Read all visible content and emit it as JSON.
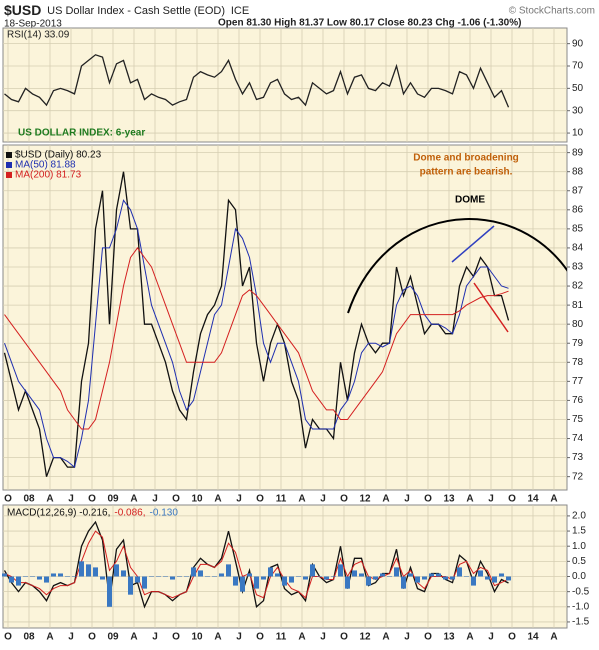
{
  "header": {
    "symbol": "$USD",
    "name": "US Dollar Index - Cash Settle (EOD)",
    "exchange": "ICE",
    "date": "18-Sep-2013",
    "quote": "Open 81.30 High 81.37 Low 80.17 Close 80.23 Chg -1.06 (-1.30%)",
    "source": "© StockCharts.com"
  },
  "chart_data": [
    {
      "type": "line",
      "title": "RSI(14) 33.09",
      "grid": true,
      "ylim": [
        2,
        104
      ],
      "yticks": [
        10,
        30,
        50,
        70,
        90
      ],
      "series": [
        {
          "name": "RSI(14)",
          "color": "#222222",
          "values": [
            45,
            40,
            38,
            50,
            45,
            42,
            35,
            48,
            50,
            48,
            45,
            70,
            75,
            80,
            78,
            55,
            72,
            75,
            55,
            58,
            40,
            45,
            42,
            40,
            35,
            38,
            40,
            60,
            65,
            62,
            60,
            65,
            75,
            58,
            45,
            55,
            40,
            42,
            55,
            58,
            45,
            40,
            42,
            35,
            55,
            50,
            45,
            48,
            65,
            45,
            60,
            62,
            50,
            48,
            55,
            52,
            70,
            45,
            55,
            45,
            42,
            50,
            50,
            48,
            45,
            65,
            62,
            50,
            68,
            55,
            42,
            48,
            33.09,
            null,
            null,
            null,
            null,
            null,
            null,
            null,
            null,
            null
          ]
        }
      ]
    },
    {
      "type": "line",
      "grid": true,
      "annotations": [
        "US DOLLAR INDEX: 6-year",
        "Dome and broadening",
        "pattern  are  bearish.",
        "DOME"
      ],
      "categories": [
        null,
        "O",
        null,
        null,
        "08",
        null,
        null,
        "A",
        null,
        null,
        "J",
        null,
        null,
        "O",
        null,
        null,
        "09",
        null,
        null,
        "A",
        null,
        null,
        "J",
        null,
        null,
        "O",
        null,
        null,
        "10",
        null,
        null,
        "A",
        null,
        null,
        "J",
        null,
        null,
        "O",
        null,
        null,
        "11",
        null,
        null,
        "A",
        null,
        null,
        "J",
        null,
        null,
        "O",
        null,
        null,
        "12",
        null,
        null,
        "A",
        null,
        null,
        "J",
        null,
        null,
        "O",
        null,
        null,
        "13",
        null,
        null,
        "A",
        null,
        null,
        "J",
        null,
        null,
        "O",
        null,
        null,
        "14",
        null,
        null,
        "A",
        null,
        null
      ],
      "ylim": [
        71.3,
        89.4
      ],
      "yticks": [
        72,
        73,
        74,
        75,
        76,
        77,
        78,
        79,
        80,
        81,
        82,
        83,
        84,
        85,
        86,
        87,
        88,
        89
      ],
      "series": [
        {
          "name": "$USD (Daily) 80.23",
          "color": "#111111",
          "values": [
            78.5,
            77,
            75.5,
            76.5,
            75.5,
            74.5,
            72,
            73,
            73,
            72.5,
            72.5,
            77,
            79,
            85,
            87,
            80,
            86,
            88,
            85,
            85,
            80,
            80,
            79,
            78,
            76.5,
            75.5,
            75,
            77.5,
            79.5,
            80.5,
            81,
            82,
            86.5,
            86,
            82,
            83,
            79,
            77,
            79,
            80,
            79,
            77,
            76,
            73.5,
            75,
            74.5,
            74.5,
            74,
            78,
            76,
            78.5,
            80,
            79,
            78.5,
            79,
            79,
            83,
            81.5,
            82.5,
            81,
            79.5,
            80,
            80,
            79.5,
            79.5,
            82,
            83,
            82.5,
            83.5,
            83,
            81.5,
            81.5,
            80.2,
            null,
            null,
            null,
            null,
            null,
            null,
            null,
            null,
            null
          ]
        },
        {
          "name": "MA(50) 81.88",
          "color": "#1f2fb0",
          "values": [
            79,
            78,
            77,
            76.5,
            76,
            75.5,
            74,
            73,
            73,
            72.8,
            72.5,
            74,
            76,
            80,
            84,
            84,
            85,
            86.5,
            86,
            85,
            83,
            81,
            80,
            79,
            78,
            76.5,
            75.5,
            76,
            77.5,
            79,
            80.5,
            81,
            83,
            85,
            84.5,
            83.5,
            81.5,
            79,
            78,
            79,
            79,
            78,
            77,
            75,
            74.5,
            74.5,
            74.5,
            74.5,
            75.5,
            76,
            77,
            78.5,
            79,
            79,
            78.8,
            79,
            81,
            81.8,
            82,
            81.5,
            80.5,
            80,
            80,
            79.8,
            79.5,
            80.5,
            82,
            82.5,
            83,
            83,
            82.5,
            82,
            81.88,
            null,
            null,
            null,
            null,
            null,
            null,
            null,
            null,
            null
          ]
        },
        {
          "name": "MA(200) 81.73",
          "color": "#d42020",
          "values": [
            80.5,
            80,
            79.5,
            79,
            78.5,
            78,
            77.5,
            77,
            76.5,
            75.5,
            75,
            74.5,
            74.5,
            75,
            76.5,
            78,
            80,
            82,
            83.5,
            84,
            83.5,
            83,
            82,
            81,
            80,
            79,
            78,
            78,
            78,
            78,
            78,
            78.5,
            79.5,
            80.5,
            81.5,
            81.8,
            81.5,
            81,
            80.5,
            80,
            79.5,
            79,
            78.5,
            77.5,
            76.5,
            76,
            75.5,
            75.5,
            75,
            75,
            75.5,
            76,
            76.5,
            77,
            77.5,
            78.5,
            79.5,
            80,
            80.5,
            80.5,
            80.5,
            80.5,
            80.5,
            80.5,
            80.5,
            80.7,
            81,
            81.2,
            81.4,
            81.5,
            81.5,
            81.6,
            81.73,
            null,
            null,
            null,
            null,
            null,
            null,
            null,
            null,
            null
          ]
        }
      ]
    },
    {
      "type": "macd",
      "grid": true,
      "categories": [
        null,
        "O",
        null,
        null,
        "08",
        null,
        null,
        "A",
        null,
        null,
        "J",
        null,
        null,
        "O",
        null,
        null,
        "09",
        null,
        null,
        "A",
        null,
        null,
        "J",
        null,
        null,
        "O",
        null,
        null,
        "10",
        null,
        null,
        "A",
        null,
        null,
        "J",
        null,
        null,
        "O",
        null,
        null,
        "11",
        null,
        null,
        "A",
        null,
        null,
        "J",
        null,
        null,
        "O",
        null,
        null,
        "12",
        null,
        null,
        "A",
        null,
        null,
        "J",
        null,
        null,
        "O",
        null,
        null,
        "13",
        null,
        null,
        "A",
        null,
        null,
        "J",
        null,
        null,
        "O",
        null,
        null,
        "14",
        null,
        null,
        "A",
        null,
        null
      ],
      "ylim": [
        -1.7,
        2.36
      ],
      "yticks": [
        -1.5,
        {
          "value": -1,
          "label": "-1.0"
        },
        -0.5,
        {
          "value": 0,
          "label": "0.0"
        },
        0.5,
        {
          "value": 1,
          "label": "1.0"
        },
        1.5,
        {
          "value": 2,
          "label": "2.0"
        }
      ],
      "series": [
        {
          "name": "MACD(12,26,9) -0.216,",
          "color": "#111111",
          "values": [
            0.2,
            -0.2,
            -0.5,
            -0.2,
            -0.3,
            -0.5,
            -0.8,
            -0.3,
            -0.2,
            -0.3,
            -0.2,
            1.0,
            1.5,
            1.8,
            1.2,
            -0.8,
            0.9,
            1.2,
            -0.3,
            -0.2,
            -1.0,
            -0.5,
            -0.5,
            -0.6,
            -0.8,
            -0.6,
            -0.5,
            0.3,
            0.6,
            0.4,
            0.3,
            0.6,
            1.5,
            0.5,
            -0.5,
            0.2,
            -1.0,
            -0.8,
            0.3,
            0.4,
            -0.4,
            -0.6,
            -0.5,
            -0.8,
            0.4,
            0,
            -0.2,
            -0.1,
            1.0,
            -0.4,
            0.6,
            0.6,
            -0.3,
            -0.2,
            0.1,
            0.1,
            0.9,
            -0.4,
            0.3,
            -0.4,
            -0.5,
            0.1,
            0.1,
            -0.1,
            -0.2,
            0.7,
            0.5,
            -0.2,
            0.5,
            0.1,
            -0.5,
            -0.1,
            -0.216,
            null,
            null,
            null,
            null,
            null,
            null,
            null,
            null,
            null
          ]
        },
        {
          "name": "-0.086,",
          "color": "#d42020",
          "values": [
            0.1,
            0,
            -0.2,
            -0.2,
            -0.3,
            -0.4,
            -0.6,
            -0.4,
            -0.3,
            -0.3,
            -0.2,
            0.5,
            1.1,
            1.5,
            1.3,
            0.2,
            0.5,
            1.0,
            0.3,
            0,
            -0.6,
            -0.5,
            -0.5,
            -0.6,
            -0.7,
            -0.6,
            -0.5,
            0,
            0.4,
            0.4,
            0.3,
            0.5,
            1.1,
            0.8,
            0,
            0.1,
            -0.6,
            -0.7,
            0,
            0.3,
            -0.1,
            -0.4,
            -0.5,
            -0.7,
            0,
            0,
            -0.1,
            -0.1,
            0.6,
            0,
            0.4,
            0.5,
            0,
            -0.1,
            0,
            0.1,
            0.6,
            0,
            0.2,
            -0.2,
            -0.4,
            0,
            0,
            0,
            -0.1,
            0.4,
            0.5,
            0.1,
            0.3,
            0.2,
            -0.3,
            -0.2,
            -0.086,
            null,
            null,
            null,
            null,
            null,
            null,
            null,
            null,
            null
          ]
        },
        {
          "name": "-0.130",
          "color": "#3a78c2",
          "bars": true,
          "values": [
            0.1,
            -0.2,
            -0.3,
            0,
            0,
            -0.1,
            -0.2,
            0.1,
            0.1,
            0,
            0,
            0.5,
            0.4,
            0.3,
            -0.1,
            -1.0,
            0.4,
            0.2,
            -0.6,
            -0.2,
            -0.4,
            0,
            0,
            0,
            -0.1,
            0,
            0,
            0.3,
            0.2,
            0,
            0,
            0.1,
            0.4,
            -0.3,
            -0.5,
            0.1,
            -0.4,
            -0.1,
            0.3,
            0.1,
            -0.3,
            -0.2,
            0,
            -0.1,
            0.4,
            0,
            -0.1,
            0,
            0.4,
            -0.4,
            0.2,
            0.1,
            -0.3,
            -0.1,
            0.1,
            0,
            0.3,
            -0.4,
            0.1,
            -0.2,
            -0.1,
            0.1,
            0.1,
            -0.1,
            -0.1,
            0.3,
            0,
            -0.3,
            0.2,
            -0.1,
            -0.2,
            0.1,
            -0.13,
            null,
            null,
            null,
            null,
            null,
            null,
            null,
            null,
            null
          ]
        }
      ]
    }
  ]
}
